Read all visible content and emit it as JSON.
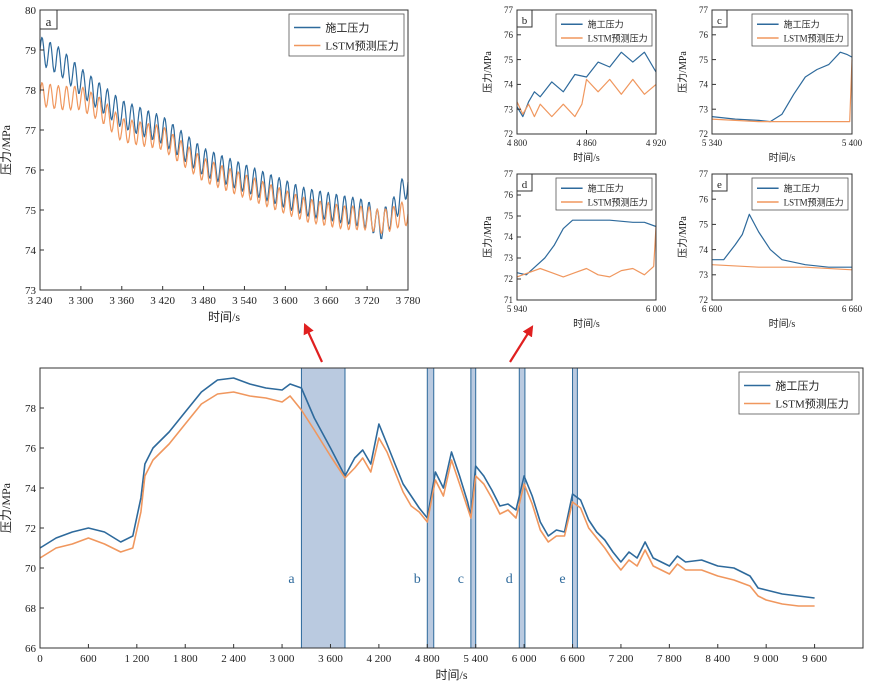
{
  "colors": {
    "construction": "#2e6a9c",
    "lstm": "#f0975e",
    "highlight_fill": "#9db3d3",
    "highlight_stroke": "#2e6a9c",
    "panel_letter": "#2e6a9c",
    "arrow": "#e02020"
  },
  "legend": {
    "construction": "施工压力",
    "lstm": "LSTM预测压力"
  },
  "chart_data": [
    {
      "id": "a",
      "type": "line",
      "panel_label": "a",
      "xlabel": "时间/s",
      "ylabel": "压力/MPa",
      "xlim": [
        3240,
        3780
      ],
      "ylim": [
        73,
        80
      ],
      "xticks": [
        3240,
        3300,
        3360,
        3420,
        3480,
        3540,
        3600,
        3660,
        3720,
        3780
      ],
      "xtick_labels": [
        "3 240",
        "3 300",
        "3 360",
        "3 420",
        "3 480",
        "3 540",
        "3 600",
        "3 660",
        "3 720",
        "3 780"
      ],
      "yticks": [
        73,
        74,
        75,
        76,
        77,
        78,
        79,
        80
      ],
      "ytick_labels": [
        "73",
        "74",
        "75",
        "76",
        "77",
        "78",
        "79",
        "80"
      ],
      "legend_position": "top-right",
      "series": [
        {
          "name": "施工压力",
          "x": [
            3240,
            3270,
            3300,
            3330,
            3360,
            3390,
            3420,
            3450,
            3480,
            3510,
            3540,
            3570,
            3600,
            3630,
            3660,
            3690,
            3720,
            3740,
            3760,
            3770,
            3780
          ],
          "y": [
            79.0,
            78.7,
            78.2,
            77.8,
            77.4,
            77.2,
            77.0,
            76.6,
            76.2,
            76.0,
            75.8,
            75.6,
            75.4,
            75.2,
            75.1,
            75.0,
            74.9,
            74.6,
            75.0,
            75.4,
            75.7
          ],
          "oscillation_amplitude": 0.35,
          "oscillation_period": 12
        },
        {
          "name": "LSTM预测压力",
          "x": [
            3240,
            3270,
            3300,
            3330,
            3360,
            3390,
            3420,
            3450,
            3480,
            3510,
            3540,
            3570,
            3600,
            3630,
            3660,
            3690,
            3720,
            3740,
            3760,
            3770,
            3780
          ],
          "y": [
            77.9,
            77.8,
            77.8,
            77.5,
            77.0,
            76.9,
            76.8,
            76.4,
            76.0,
            75.8,
            75.6,
            75.4,
            75.2,
            75.0,
            74.9,
            74.8,
            74.8,
            74.7,
            74.8,
            74.9,
            74.9
          ],
          "oscillation_amplitude": 0.3,
          "oscillation_period": 12
        }
      ]
    },
    {
      "id": "b",
      "type": "line",
      "panel_label": "b",
      "xlabel": "时间/s",
      "ylabel": "压力/MPa",
      "xlim": [
        4800,
        4920
      ],
      "ylim": [
        72,
        77
      ],
      "xticks": [
        4800,
        4860,
        4920
      ],
      "xtick_labels": [
        "4 800",
        "4 860",
        "4 920"
      ],
      "yticks": [
        72,
        73,
        74,
        75,
        76,
        77
      ],
      "ytick_labels": [
        "72",
        "73",
        "74",
        "75",
        "76",
        "77"
      ],
      "legend_position": "top-right",
      "series": [
        {
          "name": "施工压力",
          "x": [
            4800,
            4805,
            4810,
            4815,
            4820,
            4830,
            4840,
            4850,
            4860,
            4870,
            4880,
            4890,
            4900,
            4910,
            4920
          ],
          "y": [
            73.1,
            72.7,
            73.3,
            73.7,
            73.5,
            74.1,
            73.7,
            74.4,
            74.3,
            74.9,
            74.7,
            75.3,
            74.9,
            75.3,
            74.5
          ]
        },
        {
          "name": "LSTM预测压力",
          "x": [
            4800,
            4805,
            4810,
            4815,
            4820,
            4830,
            4840,
            4850,
            4856,
            4860,
            4870,
            4880,
            4890,
            4900,
            4910,
            4920
          ],
          "y": [
            73.3,
            72.8,
            73.2,
            72.7,
            73.2,
            72.7,
            73.2,
            72.7,
            73.2,
            74.2,
            73.7,
            74.2,
            73.6,
            74.2,
            73.6,
            74.0
          ]
        }
      ]
    },
    {
      "id": "c",
      "type": "line",
      "panel_label": "c",
      "xlabel": "时间/s",
      "ylabel": "压力/MPa",
      "xlim": [
        5340,
        5400
      ],
      "ylim": [
        72,
        77
      ],
      "xticks": [
        5340,
        5400
      ],
      "xtick_labels": [
        "5 340",
        "5 400"
      ],
      "yticks": [
        72,
        73,
        74,
        75,
        76,
        77
      ],
      "ytick_labels": [
        "72",
        "73",
        "74",
        "75",
        "76",
        "77"
      ],
      "legend_position": "top-right",
      "series": [
        {
          "name": "施工压力",
          "x": [
            5340,
            5350,
            5360,
            5365,
            5370,
            5375,
            5380,
            5385,
            5390,
            5395,
            5398,
            5400
          ],
          "y": [
            72.7,
            72.6,
            72.55,
            72.5,
            72.8,
            73.6,
            74.3,
            74.6,
            74.8,
            75.3,
            75.2,
            75.1
          ]
        },
        {
          "name": "LSTM预测压力",
          "x": [
            5340,
            5350,
            5360,
            5370,
            5380,
            5390,
            5399,
            5400
          ],
          "y": [
            72.6,
            72.55,
            72.5,
            72.5,
            72.5,
            72.5,
            72.5,
            75.0
          ]
        }
      ]
    },
    {
      "id": "d",
      "type": "line",
      "panel_label": "d",
      "xlabel": "时间/s",
      "ylabel": "压力/MPa",
      "xlim": [
        5940,
        6000
      ],
      "ylim": [
        71,
        77
      ],
      "xticks": [
        5940,
        6000
      ],
      "xtick_labels": [
        "5 940",
        "6 000"
      ],
      "yticks": [
        71,
        72,
        73,
        74,
        75,
        76,
        77
      ],
      "ytick_labels": [
        "71",
        "72",
        "73",
        "74",
        "75",
        "76",
        "77"
      ],
      "legend_position": "top-right",
      "series": [
        {
          "name": "施工压力",
          "x": [
            5940,
            5944,
            5948,
            5952,
            5956,
            5960,
            5964,
            5970,
            5980,
            5990,
            5995,
            6000
          ],
          "y": [
            72.3,
            72.2,
            72.6,
            73.0,
            73.6,
            74.4,
            74.8,
            74.8,
            74.8,
            74.7,
            74.7,
            74.5
          ]
        },
        {
          "name": "LSTM预测压力",
          "x": [
            5940,
            5945,
            5950,
            5955,
            5960,
            5965,
            5970,
            5975,
            5980,
            5985,
            5990,
            5995,
            5999,
            6000
          ],
          "y": [
            72.1,
            72.3,
            72.5,
            72.3,
            72.1,
            72.3,
            72.5,
            72.2,
            72.1,
            72.4,
            72.5,
            72.2,
            72.6,
            74.5
          ]
        }
      ]
    },
    {
      "id": "e",
      "type": "line",
      "panel_label": "e",
      "xlabel": "时间/s",
      "ylabel": "压力/MPa",
      "xlim": [
        6600,
        6660
      ],
      "ylim": [
        72,
        77
      ],
      "xticks": [
        6600,
        6660
      ],
      "xtick_labels": [
        "6 600",
        "6 660"
      ],
      "yticks": [
        72,
        73,
        74,
        75,
        76,
        77
      ],
      "ytick_labels": [
        "72",
        "73",
        "74",
        "75",
        "76",
        "77"
      ],
      "legend_position": "top-right",
      "series": [
        {
          "name": "施工压力",
          "x": [
            6600,
            6605,
            6610,
            6613,
            6616,
            6620,
            6625,
            6630,
            6640,
            6650,
            6660
          ],
          "y": [
            73.6,
            73.6,
            74.2,
            74.6,
            75.4,
            74.7,
            74.0,
            73.6,
            73.4,
            73.3,
            73.3
          ]
        },
        {
          "name": "LSTM预测压力",
          "x": [
            6600,
            6620,
            6640,
            6660
          ],
          "y": [
            73.4,
            73.3,
            73.3,
            73.2
          ]
        }
      ]
    },
    {
      "id": "main",
      "type": "line",
      "xlabel": "时间/s",
      "ylabel": "压力/MPa",
      "xlim": [
        0,
        10200
      ],
      "ylim": [
        66,
        80
      ],
      "xticks": [
        0,
        600,
        1200,
        1800,
        2400,
        3000,
        3600,
        4200,
        4800,
        5400,
        6000,
        6600,
        7200,
        7800,
        8400,
        9000,
        9600
      ],
      "xtick_labels": [
        "0",
        "600",
        "1 200",
        "1 800",
        "2 400",
        "3 000",
        "3 600",
        "4 200",
        "4 800",
        "5 400",
        "6 000",
        "6 600",
        "7 200",
        "7 800",
        "8 400",
        "9 000",
        "9 600"
      ],
      "yticks": [
        66,
        68,
        70,
        72,
        74,
        76,
        78
      ],
      "ytick_labels": [
        "66",
        "68",
        "70",
        "72",
        "74",
        "76",
        "78"
      ],
      "legend_position": "top-right",
      "highlight_regions": [
        {
          "label": "a",
          "x0": 3240,
          "x1": 3780
        },
        {
          "label": "b",
          "x0": 4800,
          "x1": 4880
        },
        {
          "label": "c",
          "x0": 5340,
          "x1": 5400
        },
        {
          "label": "d",
          "x0": 5940,
          "x1": 6010
        },
        {
          "label": "e",
          "x0": 6600,
          "x1": 6660
        }
      ],
      "series": [
        {
          "name": "施工压力",
          "x": [
            0,
            200,
            400,
            600,
            800,
            1000,
            1150,
            1250,
            1300,
            1400,
            1600,
            1800,
            2000,
            2200,
            2400,
            2600,
            2800,
            3000,
            3100,
            3240,
            3400,
            3600,
            3780,
            3900,
            4000,
            4100,
            4200,
            4300,
            4400,
            4500,
            4600,
            4700,
            4800,
            4900,
            5000,
            5100,
            5200,
            5300,
            5340,
            5400,
            5500,
            5600,
            5700,
            5800,
            5900,
            6000,
            6100,
            6200,
            6300,
            6400,
            6500,
            6600,
            6700,
            6800,
            6900,
            7000,
            7100,
            7200,
            7300,
            7400,
            7500,
            7600,
            7700,
            7800,
            7900,
            8000,
            8200,
            8400,
            8600,
            8800,
            8900,
            9000,
            9200,
            9400,
            9600
          ],
          "y": [
            71.0,
            71.5,
            71.8,
            72.0,
            71.8,
            71.3,
            71.6,
            73.5,
            75.2,
            76.0,
            76.8,
            77.8,
            78.8,
            79.4,
            79.5,
            79.2,
            79.0,
            78.9,
            79.2,
            79.0,
            77.5,
            76.0,
            74.6,
            75.5,
            75.9,
            75.2,
            77.2,
            76.2,
            75.2,
            74.2,
            73.6,
            73.0,
            72.5,
            74.8,
            74.0,
            75.8,
            74.6,
            73.3,
            72.6,
            75.1,
            74.6,
            73.9,
            73.1,
            73.2,
            72.9,
            74.6,
            73.6,
            72.3,
            71.6,
            71.9,
            71.8,
            73.7,
            73.4,
            72.4,
            71.8,
            71.4,
            70.8,
            70.3,
            70.8,
            70.5,
            71.3,
            70.5,
            70.3,
            70.1,
            70.6,
            70.3,
            70.4,
            70.1,
            70.0,
            69.6,
            69.0,
            68.9,
            68.7,
            68.6,
            68.5
          ]
        },
        {
          "name": "LSTM预测压力",
          "x": [
            0,
            200,
            400,
            600,
            800,
            1000,
            1150,
            1250,
            1300,
            1400,
            1600,
            1800,
            2000,
            2200,
            2400,
            2600,
            2800,
            3000,
            3100,
            3240,
            3400,
            3600,
            3780,
            3900,
            4000,
            4100,
            4200,
            4300,
            4400,
            4500,
            4600,
            4700,
            4800,
            4900,
            5000,
            5100,
            5200,
            5300,
            5340,
            5400,
            5500,
            5600,
            5700,
            5800,
            5900,
            6000,
            6100,
            6200,
            6300,
            6400,
            6500,
            6600,
            6700,
            6800,
            6900,
            7000,
            7100,
            7200,
            7300,
            7400,
            7500,
            7600,
            7700,
            7800,
            7900,
            8000,
            8200,
            8400,
            8600,
            8800,
            8900,
            9000,
            9200,
            9400,
            9600
          ],
          "y": [
            70.5,
            71.0,
            71.2,
            71.5,
            71.2,
            70.8,
            71.0,
            72.8,
            74.6,
            75.4,
            76.2,
            77.2,
            78.2,
            78.7,
            78.8,
            78.6,
            78.5,
            78.3,
            78.6,
            77.9,
            76.9,
            75.6,
            74.5,
            75.0,
            75.5,
            74.8,
            76.5,
            75.8,
            74.8,
            73.8,
            73.1,
            72.8,
            72.3,
            74.4,
            73.6,
            75.4,
            74.2,
            73.0,
            72.5,
            74.6,
            74.2,
            73.5,
            72.7,
            72.9,
            72.5,
            74.2,
            73.2,
            71.9,
            71.3,
            71.6,
            71.6,
            73.3,
            73.0,
            72.0,
            71.5,
            71.0,
            70.4,
            69.9,
            70.4,
            70.1,
            70.9,
            70.1,
            69.9,
            69.7,
            70.2,
            69.9,
            69.9,
            69.6,
            69.4,
            69.1,
            68.6,
            68.4,
            68.2,
            68.1,
            68.1
          ]
        }
      ]
    }
  ]
}
